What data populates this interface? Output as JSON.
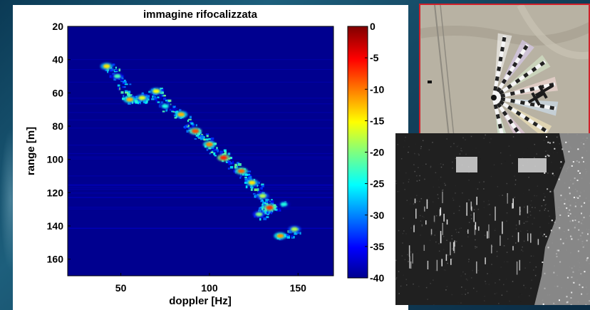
{
  "chart_data": {
    "type": "heatmap",
    "title": "immagine rifocalizzata",
    "xlabel": "doppler [Hz]",
    "ylabel": "range [m]",
    "xlim": [
      20,
      170
    ],
    "ylim": [
      20,
      170
    ],
    "y_inverted": true,
    "xticks": [
      "50",
      "100",
      "150"
    ],
    "yticks": [
      "20",
      "40",
      "60",
      "80",
      "100",
      "120",
      "140",
      "160"
    ],
    "colorbar": {
      "range": [
        -40,
        0
      ],
      "ticks": [
        "0",
        "-5",
        "-10",
        "-15",
        "-20",
        "-25",
        "-30",
        "-35",
        "-40"
      ],
      "colormap": "jet"
    },
    "background_level": -40,
    "features": [
      {
        "doppler": 42,
        "range": 44,
        "level": -14
      },
      {
        "doppler": 48,
        "range": 50,
        "level": -22
      },
      {
        "doppler": 55,
        "range": 64,
        "level": -12
      },
      {
        "doppler": 62,
        "range": 63,
        "level": -16
      },
      {
        "doppler": 70,
        "range": 59,
        "level": -15
      },
      {
        "doppler": 75,
        "range": 68,
        "level": -24
      },
      {
        "doppler": 84,
        "range": 73,
        "level": -12
      },
      {
        "doppler": 92,
        "range": 83,
        "level": -8
      },
      {
        "doppler": 100,
        "range": 91,
        "level": -10
      },
      {
        "doppler": 108,
        "range": 99,
        "level": -6
      },
      {
        "doppler": 118,
        "range": 107,
        "level": -9
      },
      {
        "doppler": 124,
        "range": 114,
        "level": -14
      },
      {
        "doppler": 130,
        "range": 122,
        "level": -18
      },
      {
        "doppler": 134,
        "range": 129,
        "level": -7
      },
      {
        "doppler": 128,
        "range": 133,
        "level": -20
      },
      {
        "doppler": 142,
        "range": 127,
        "level": -24
      },
      {
        "doppler": 140,
        "range": 146,
        "level": -11
      },
      {
        "doppler": 148,
        "range": 142,
        "level": -18
      }
    ]
  },
  "images": {
    "aerial": "aerial-photo-with-spoke-pattern",
    "sar": "sar-radar-image"
  }
}
